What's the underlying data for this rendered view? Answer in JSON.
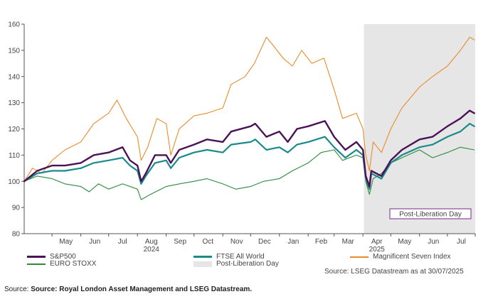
{
  "chart_data": {
    "type": "line",
    "ylim": [
      80,
      160
    ],
    "yticks": [
      80,
      90,
      100,
      110,
      120,
      130,
      140,
      150,
      160
    ],
    "xlim": [
      "2024-04-01",
      "2025-07-31"
    ],
    "month_ticks": [
      {
        "label": "May",
        "date": "2024-05-01"
      },
      {
        "label": "Jun",
        "date": "2024-06-01"
      },
      {
        "label": "Jul",
        "date": "2024-07-01"
      },
      {
        "label": "Aug",
        "date": "2024-08-01"
      },
      {
        "label": "Sep",
        "date": "2024-09-01"
      },
      {
        "label": "Oct",
        "date": "2024-10-01"
      },
      {
        "label": "Nov",
        "date": "2024-11-01"
      },
      {
        "label": "Dec",
        "date": "2024-12-01"
      },
      {
        "label": "Jan",
        "date": "2025-01-01"
      },
      {
        "label": "Feb",
        "date": "2025-02-01"
      },
      {
        "label": "Mar",
        "date": "2025-03-01"
      },
      {
        "label": "Apr",
        "date": "2025-04-01"
      },
      {
        "label": "May",
        "date": "2025-05-01"
      },
      {
        "label": "Jun",
        "date": "2025-06-01"
      },
      {
        "label": "Jul",
        "date": "2025-07-01"
      }
    ],
    "year_labels": [
      {
        "label": "2024",
        "date": "2024-08-16"
      },
      {
        "label": "2025",
        "date": "2025-04-16"
      }
    ],
    "shaded_region": {
      "name": "Post-Liberation Day",
      "from": "2025-04-02",
      "to": "2025-07-31",
      "color": "#e6e6e6"
    },
    "annotation": {
      "text": "Post-Liberation Day",
      "color": "#7a2a8a"
    },
    "series": [
      {
        "name": "S&P500",
        "color": "#4b1258",
        "width": 2.4,
        "points": [
          [
            "2024-04-01",
            100
          ],
          [
            "2024-04-15",
            104
          ],
          [
            "2024-05-01",
            106
          ],
          [
            "2024-05-15",
            106
          ],
          [
            "2024-06-01",
            107
          ],
          [
            "2024-06-15",
            110
          ],
          [
            "2024-07-01",
            111
          ],
          [
            "2024-07-16",
            113
          ],
          [
            "2024-07-24",
            108
          ],
          [
            "2024-08-01",
            106
          ],
          [
            "2024-08-05",
            100
          ],
          [
            "2024-08-10",
            103
          ],
          [
            "2024-08-20",
            110
          ],
          [
            "2024-09-01",
            110
          ],
          [
            "2024-09-06",
            107
          ],
          [
            "2024-09-15",
            112
          ],
          [
            "2024-10-01",
            114
          ],
          [
            "2024-10-15",
            116
          ],
          [
            "2024-11-01",
            115
          ],
          [
            "2024-11-10",
            119
          ],
          [
            "2024-12-01",
            121
          ],
          [
            "2024-12-06",
            122
          ],
          [
            "2024-12-18",
            117
          ],
          [
            "2025-01-01",
            119
          ],
          [
            "2025-01-10",
            115
          ],
          [
            "2025-01-20",
            120
          ],
          [
            "2025-02-01",
            121
          ],
          [
            "2025-02-19",
            123
          ],
          [
            "2025-03-01",
            117
          ],
          [
            "2025-03-13",
            112
          ],
          [
            "2025-03-25",
            115
          ],
          [
            "2025-04-01",
            112
          ],
          [
            "2025-04-04",
            102
          ],
          [
            "2025-04-08",
            98
          ],
          [
            "2025-04-10",
            104
          ],
          [
            "2025-04-21",
            102
          ],
          [
            "2025-05-01",
            108
          ],
          [
            "2025-05-13",
            112
          ],
          [
            "2025-06-01",
            116
          ],
          [
            "2025-06-15",
            117
          ],
          [
            "2025-07-01",
            121
          ],
          [
            "2025-07-15",
            124
          ],
          [
            "2025-07-25",
            127
          ],
          [
            "2025-07-30",
            126
          ]
        ]
      },
      {
        "name": "FTSE All World",
        "color": "#1a8a8a",
        "width": 2.2,
        "points": [
          [
            "2024-04-01",
            100
          ],
          [
            "2024-04-15",
            103
          ],
          [
            "2024-05-01",
            104
          ],
          [
            "2024-05-15",
            104
          ],
          [
            "2024-06-01",
            105
          ],
          [
            "2024-06-15",
            107
          ],
          [
            "2024-07-01",
            108
          ],
          [
            "2024-07-16",
            109
          ],
          [
            "2024-07-24",
            106
          ],
          [
            "2024-08-01",
            104
          ],
          [
            "2024-08-05",
            99
          ],
          [
            "2024-08-10",
            102
          ],
          [
            "2024-08-20",
            107
          ],
          [
            "2024-09-01",
            108
          ],
          [
            "2024-09-06",
            105
          ],
          [
            "2024-09-15",
            109
          ],
          [
            "2024-10-01",
            111
          ],
          [
            "2024-10-15",
            112
          ],
          [
            "2024-11-01",
            111
          ],
          [
            "2024-11-10",
            114
          ],
          [
            "2024-12-01",
            115
          ],
          [
            "2024-12-06",
            116
          ],
          [
            "2024-12-18",
            112
          ],
          [
            "2025-01-01",
            113
          ],
          [
            "2025-01-10",
            111
          ],
          [
            "2025-01-20",
            114
          ],
          [
            "2025-02-01",
            115
          ],
          [
            "2025-02-19",
            117
          ],
          [
            "2025-03-01",
            113
          ],
          [
            "2025-03-13",
            109
          ],
          [
            "2025-03-25",
            112
          ],
          [
            "2025-04-01",
            110
          ],
          [
            "2025-04-04",
            101
          ],
          [
            "2025-04-08",
            97
          ],
          [
            "2025-04-10",
            103
          ],
          [
            "2025-04-21",
            101
          ],
          [
            "2025-05-01",
            107
          ],
          [
            "2025-05-13",
            110
          ],
          [
            "2025-06-01",
            113
          ],
          [
            "2025-06-15",
            114
          ],
          [
            "2025-07-01",
            117
          ],
          [
            "2025-07-15",
            119
          ],
          [
            "2025-07-25",
            122
          ],
          [
            "2025-07-30",
            121
          ]
        ]
      },
      {
        "name": "EURO STOXX",
        "color": "#2e8b3e",
        "width": 1.1,
        "points": [
          [
            "2024-04-01",
            100
          ],
          [
            "2024-04-15",
            102
          ],
          [
            "2024-05-01",
            101
          ],
          [
            "2024-05-15",
            99
          ],
          [
            "2024-06-01",
            98
          ],
          [
            "2024-06-10",
            96
          ],
          [
            "2024-06-20",
            99
          ],
          [
            "2024-07-01",
            97
          ],
          [
            "2024-07-16",
            99
          ],
          [
            "2024-08-01",
            97
          ],
          [
            "2024-08-05",
            93
          ],
          [
            "2024-08-15",
            95
          ],
          [
            "2024-09-01",
            98
          ],
          [
            "2024-09-15",
            99
          ],
          [
            "2024-10-01",
            100
          ],
          [
            "2024-10-15",
            101
          ],
          [
            "2024-11-01",
            99
          ],
          [
            "2024-11-15",
            97
          ],
          [
            "2024-12-01",
            98
          ],
          [
            "2024-12-15",
            100
          ],
          [
            "2025-01-01",
            101
          ],
          [
            "2025-01-15",
            104
          ],
          [
            "2025-02-01",
            107
          ],
          [
            "2025-02-15",
            111
          ],
          [
            "2025-03-01",
            112
          ],
          [
            "2025-03-10",
            108
          ],
          [
            "2025-03-25",
            110
          ],
          [
            "2025-04-01",
            109
          ],
          [
            "2025-04-04",
            100
          ],
          [
            "2025-04-08",
            95
          ],
          [
            "2025-04-12",
            101
          ],
          [
            "2025-04-21",
            103
          ],
          [
            "2025-05-01",
            107
          ],
          [
            "2025-05-13",
            109
          ],
          [
            "2025-06-01",
            112
          ],
          [
            "2025-06-15",
            109
          ],
          [
            "2025-07-01",
            111
          ],
          [
            "2025-07-15",
            113
          ],
          [
            "2025-07-30",
            112
          ]
        ]
      },
      {
        "name": "Magnificent Seven Index",
        "color": "#e98b2a",
        "width": 1.1,
        "points": [
          [
            "2024-04-01",
            100
          ],
          [
            "2024-04-10",
            105
          ],
          [
            "2024-04-20",
            103
          ],
          [
            "2024-05-01",
            108
          ],
          [
            "2024-05-15",
            112
          ],
          [
            "2024-06-01",
            115
          ],
          [
            "2024-06-15",
            122
          ],
          [
            "2024-07-01",
            126
          ],
          [
            "2024-07-10",
            131
          ],
          [
            "2024-07-20",
            124
          ],
          [
            "2024-08-01",
            117
          ],
          [
            "2024-08-05",
            108
          ],
          [
            "2024-08-12",
            113
          ],
          [
            "2024-08-22",
            124
          ],
          [
            "2024-09-01",
            122
          ],
          [
            "2024-09-06",
            110
          ],
          [
            "2024-09-15",
            120
          ],
          [
            "2024-10-01",
            125
          ],
          [
            "2024-10-15",
            126
          ],
          [
            "2024-11-01",
            128
          ],
          [
            "2024-11-10",
            137
          ],
          [
            "2024-11-25",
            140
          ],
          [
            "2024-12-05",
            145
          ],
          [
            "2024-12-18",
            155
          ],
          [
            "2024-12-25",
            152
          ],
          [
            "2025-01-05",
            147
          ],
          [
            "2025-01-15",
            144
          ],
          [
            "2025-01-25",
            150
          ],
          [
            "2025-02-05",
            145
          ],
          [
            "2025-02-18",
            147
          ],
          [
            "2025-03-01",
            135
          ],
          [
            "2025-03-10",
            124
          ],
          [
            "2025-03-25",
            126
          ],
          [
            "2025-04-01",
            120
          ],
          [
            "2025-04-04",
            110
          ],
          [
            "2025-04-08",
            104
          ],
          [
            "2025-04-12",
            115
          ],
          [
            "2025-04-21",
            111
          ],
          [
            "2025-05-01",
            120
          ],
          [
            "2025-05-13",
            128
          ],
          [
            "2025-06-01",
            136
          ],
          [
            "2025-06-15",
            140
          ],
          [
            "2025-07-01",
            144
          ],
          [
            "2025-07-15",
            150
          ],
          [
            "2025-07-25",
            155
          ],
          [
            "2025-07-30",
            154
          ]
        ]
      }
    ]
  },
  "legend": {
    "items": [
      {
        "label": "S&P500",
        "color": "#4b1258",
        "kind": "thick"
      },
      {
        "label": "FTSE All World",
        "color": "#1a8a8a",
        "kind": "thick"
      },
      {
        "label": "Magnificent Seven Index",
        "color": "#e98b2a",
        "kind": "line"
      },
      {
        "label": "EURO STOXX",
        "color": "#2e8b3e",
        "kind": "line"
      },
      {
        "label": "Post-Liberation Day",
        "color": "#e6e6e6",
        "kind": "box"
      }
    ]
  },
  "source_note": "Source: LSEG Datastream as at 30/07/2025",
  "footer": {
    "prefix": "Source: ",
    "text": "Source: Royal London Asset Management and LSEG Datastream."
  }
}
